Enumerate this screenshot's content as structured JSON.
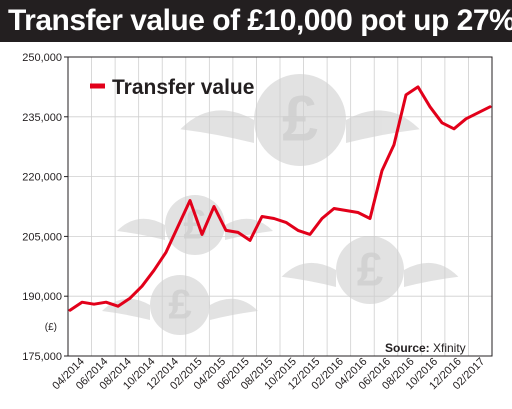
{
  "header": {
    "title": "Transfer value of £10,000 pot up 27%"
  },
  "unit_label": "(£)",
  "source": {
    "label": "Source:",
    "value": "Xfinity"
  },
  "colors": {
    "line": "#e2001a",
    "header_bg": "#231f20",
    "grid": "#cfcfcf",
    "watermark": "#d9d9d9"
  },
  "watermark": {
    "icon": "winged-pound-coin-icon"
  },
  "chart_data": {
    "type": "line",
    "title": "Transfer value of £10,000 pot up 27%",
    "xlabel": "",
    "ylabel": "(£)",
    "ylim": [
      175000,
      250000
    ],
    "yticks": [
      "250,000",
      "235,000",
      "220,000",
      "205,000",
      "190,000",
      "175,000"
    ],
    "ytick_values": [
      250000,
      235000,
      220000,
      205000,
      190000,
      175000
    ],
    "xticks": [
      "04/2014",
      "06/2014",
      "08/2014",
      "10/2014",
      "12/2014",
      "02/2015",
      "04/2015",
      "06/2015",
      "08/2015",
      "10/2015",
      "12/2015",
      "02/2016",
      "04/2016",
      "06/2016",
      "08/2016",
      "10/2016",
      "12/2016",
      "02/2017"
    ],
    "grid": true,
    "legend_position": "top-left",
    "series": [
      {
        "name": "Transfer value",
        "x": [
          "04/2014",
          "05/2014",
          "06/2014",
          "07/2014",
          "08/2014",
          "09/2014",
          "10/2014",
          "11/2014",
          "12/2014",
          "01/2015",
          "02/2015",
          "03/2015",
          "04/2015",
          "05/2015",
          "06/2015",
          "07/2015",
          "08/2015",
          "09/2015",
          "10/2015",
          "11/2015",
          "12/2015",
          "01/2016",
          "02/2016",
          "03/2016",
          "04/2016",
          "05/2016",
          "06/2016",
          "07/2016",
          "08/2016",
          "09/2016",
          "10/2016",
          "11/2016",
          "12/2016",
          "01/2017",
          "02/2017",
          "03/2017"
        ],
        "values": [
          186500,
          188500,
          188000,
          188500,
          187500,
          189500,
          192500,
          196500,
          201000,
          207500,
          214000,
          205500,
          212500,
          206500,
          206000,
          204000,
          210000,
          209500,
          208500,
          206500,
          205500,
          209500,
          212000,
          211500,
          211000,
          209500,
          221500,
          228000,
          240500,
          242500,
          237500,
          233500,
          232000,
          234500,
          236000,
          237500
        ]
      }
    ]
  }
}
